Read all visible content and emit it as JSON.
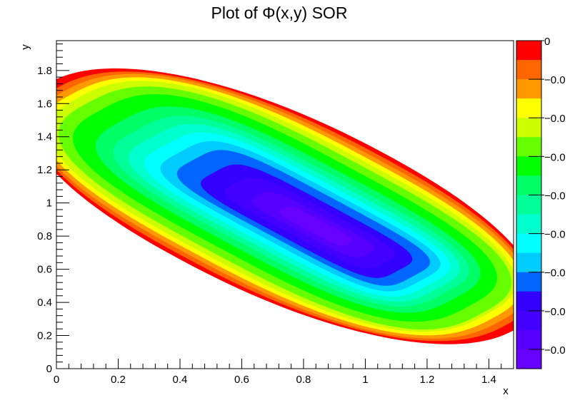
{
  "chart_data": {
    "type": "contour",
    "title": "Plot of Φ(x,y) SOR",
    "xlabel": "x",
    "ylabel": "y",
    "xlim": [
      0,
      1.48
    ],
    "ylim": [
      0,
      1.98
    ],
    "x_ticks": [
      {
        "value": 0,
        "label": "0"
      },
      {
        "value": 0.2,
        "label": "0.2"
      },
      {
        "value": 0.4,
        "label": "0.4"
      },
      {
        "value": 0.6,
        "label": "0.6"
      },
      {
        "value": 0.8,
        "label": "0.8"
      },
      {
        "value": 1.0,
        "label": "1"
      },
      {
        "value": 1.2,
        "label": "1.2"
      },
      {
        "value": 1.4,
        "label": "1.4"
      }
    ],
    "y_ticks": [
      {
        "value": 0,
        "label": "0"
      },
      {
        "value": 0.2,
        "label": "0.2"
      },
      {
        "value": 0.4,
        "label": "0.4"
      },
      {
        "value": 0.6,
        "label": "0.6"
      },
      {
        "value": 0.8,
        "label": "0.8"
      },
      {
        "value": 1.0,
        "label": "1"
      },
      {
        "value": 1.2,
        "label": "1.2"
      },
      {
        "value": 1.4,
        "label": "1.4"
      },
      {
        "value": 1.6,
        "label": "1.6"
      },
      {
        "value": 1.8,
        "label": "1.8"
      }
    ],
    "colorbar": {
      "colors": [
        "#ff0000",
        "#ff6600",
        "#ff9900",
        "#ffff00",
        "#ccff00",
        "#66ff00",
        "#00ff00",
        "#00ff66",
        "#00ff99",
        "#00ffcc",
        "#00ffff",
        "#00ccff",
        "#0066ff",
        "#3300ff",
        "#4400ff",
        "#5500ff",
        "#6600ff"
      ],
      "tick_labels": [
        "0",
        "−0.0",
        "−0.0",
        "−0.0",
        "−0.0",
        "−0.0",
        "−0.0",
        "−0.0",
        "−0.0"
      ]
    },
    "contour_levels": [
      {
        "color": "#ff0000",
        "cx": 0.73,
        "cy": 0.98,
        "a": 1.06,
        "b": 0.46,
        "sq": 0.06
      },
      {
        "color": "#ff6600",
        "cx": 0.73,
        "cy": 0.98,
        "a": 1.02,
        "b": 0.44,
        "sq": 0.12
      },
      {
        "color": "#ff9900",
        "cx": 0.73,
        "cy": 0.98,
        "a": 0.99,
        "b": 0.42,
        "sq": 0.18
      },
      {
        "color": "#ffff00",
        "cx": 0.73,
        "cy": 0.98,
        "a": 0.96,
        "b": 0.4,
        "sq": 0.22
      },
      {
        "color": "#ccff00",
        "cx": 0.73,
        "cy": 0.98,
        "a": 0.93,
        "b": 0.38,
        "sq": 0.26
      },
      {
        "color": "#66ff00",
        "cx": 0.74,
        "cy": 0.97,
        "a": 0.9,
        "b": 0.355,
        "sq": 0.3
      },
      {
        "color": "#00ff00",
        "cx": 0.74,
        "cy": 0.97,
        "a": 0.84,
        "b": 0.32,
        "sq": 0.36
      },
      {
        "color": "#00ff66",
        "cx": 0.75,
        "cy": 0.96,
        "a": 0.76,
        "b": 0.28,
        "sq": 0.42
      },
      {
        "color": "#00ff99",
        "cx": 0.76,
        "cy": 0.95,
        "a": 0.7,
        "b": 0.25,
        "sq": 0.5
      },
      {
        "color": "#00ffcc",
        "cx": 0.77,
        "cy": 0.94,
        "a": 0.65,
        "b": 0.225,
        "sq": 0.58
      },
      {
        "color": "#00ffff",
        "cx": 0.78,
        "cy": 0.93,
        "a": 0.6,
        "b": 0.2,
        "sq": 0.66
      },
      {
        "color": "#00ccff",
        "cx": 0.79,
        "cy": 0.92,
        "a": 0.55,
        "b": 0.175,
        "sq": 0.74
      },
      {
        "color": "#0066ff",
        "cx": 0.8,
        "cy": 0.91,
        "a": 0.5,
        "b": 0.15,
        "sq": 0.8
      },
      {
        "color": "#3300ff",
        "cx": 0.81,
        "cy": 0.89,
        "a": 0.42,
        "b": 0.12,
        "sq": 0.84
      },
      {
        "color": "#4400ff",
        "cx": 0.82,
        "cy": 0.88,
        "a": 0.34,
        "b": 0.09,
        "sq": 0.86
      },
      {
        "color": "#5500ff",
        "cx": 0.83,
        "cy": 0.87,
        "a": 0.25,
        "b": 0.06,
        "sq": 0.88
      },
      {
        "color": "#6600ff",
        "cx": 0.84,
        "cy": 0.86,
        "a": 0.15,
        "b": 0.035,
        "sq": 0.9
      }
    ],
    "grid": false,
    "legend": "colorbar-right"
  }
}
